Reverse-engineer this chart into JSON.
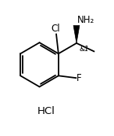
{
  "bg_color": "#ffffff",
  "line_color": "#000000",
  "font_color": "#000000",
  "figsize": [
    1.46,
    1.73
  ],
  "dpi": 100,
  "cl_label": "Cl",
  "f_label": "F",
  "nh2_label": "NH₂",
  "hcl_label": "HCl",
  "stereo_label": "&1",
  "text_fontsize": 8.5,
  "stereo_fontsize": 6.5,
  "hcl_fontsize": 9.5
}
